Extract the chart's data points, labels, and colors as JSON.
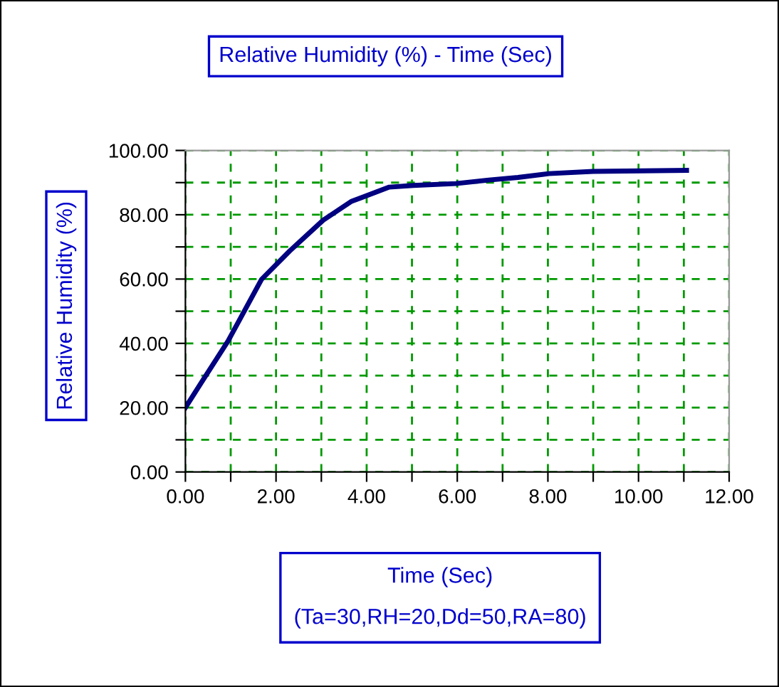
{
  "chart_data": {
    "type": "line",
    "title": "Relative Humidity (%) - Time (Sec)",
    "xlabel": "Time (Sec)",
    "ylabel": "Relative Humidity (%)",
    "annotations": [
      "(Ta=30,RH=20,Dd=50,RA=80)"
    ],
    "x": [
      0,
      0.37,
      0.94,
      1.68,
      2.3,
      3.04,
      3.67,
      4.5,
      5.03,
      5.97,
      6.7,
      7.34,
      8.02,
      9.0,
      11.06
    ],
    "series": [
      {
        "color": "#000080",
        "values": [
          20,
          28.2,
          40.7,
          59.9,
          68.7,
          78.3,
          84.2,
          88.6,
          89.1,
          89.7,
          90.8,
          91.6,
          92.8,
          93.5,
          93.8
        ]
      }
    ],
    "xlim": [
      0,
      12
    ],
    "ylim": [
      0,
      100
    ],
    "xticks": [
      {
        "value": 0,
        "label": "0.00"
      },
      {
        "value": 1,
        "label": null
      },
      {
        "value": 2,
        "label": "2.00"
      },
      {
        "value": 3,
        "label": null
      },
      {
        "value": 4,
        "label": "4.00"
      },
      {
        "value": 5,
        "label": null
      },
      {
        "value": 6,
        "label": "6.00"
      },
      {
        "value": 7,
        "label": null
      },
      {
        "value": 8,
        "label": "8.00"
      },
      {
        "value": 9,
        "label": null
      },
      {
        "value": 10,
        "label": "10.00"
      },
      {
        "value": 11,
        "label": null
      },
      {
        "value": 12,
        "label": "12.00"
      }
    ],
    "yticks": [
      {
        "value": 0,
        "label": "0.00"
      },
      {
        "value": 10,
        "label": null
      },
      {
        "value": 20,
        "label": "20.00"
      },
      {
        "value": 30,
        "label": null
      },
      {
        "value": 40,
        "label": "40.00"
      },
      {
        "value": 50,
        "label": null
      },
      {
        "value": 60,
        "label": "60.00"
      },
      {
        "value": 70,
        "label": null
      },
      {
        "value": 80,
        "label": "80.00"
      },
      {
        "value": 90,
        "label": null
      },
      {
        "value": 100,
        "label": "100.00"
      }
    ],
    "grid": true,
    "line_style": "solid",
    "marker": "none"
  }
}
